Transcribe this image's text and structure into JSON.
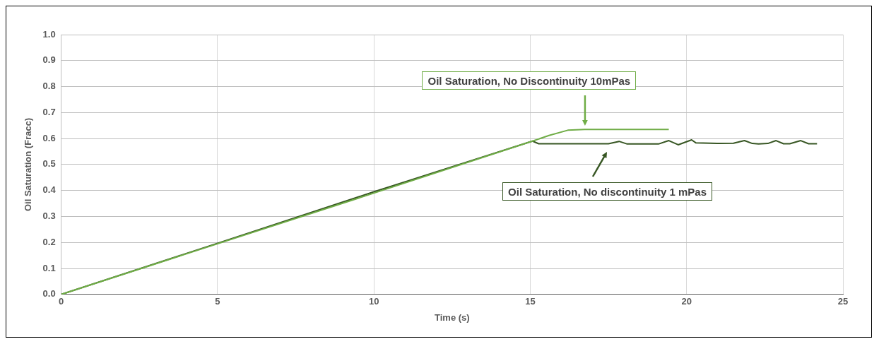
{
  "chart_data": {
    "type": "line",
    "xlabel": "Time (s)",
    "ylabel": "Oil Saturation (Fracc)",
    "xlim": [
      0,
      25
    ],
    "xticks": [
      0,
      5,
      10,
      15,
      20,
      25
    ],
    "ylim": [
      0,
      1
    ],
    "yticks": [
      {
        "value": 0,
        "label": "0.0"
      },
      {
        "value": 0.1,
        "label": "0.1"
      },
      {
        "value": 0.2,
        "label": "0.2"
      },
      {
        "value": 0.3,
        "label": "0.3"
      },
      {
        "value": 0.4,
        "label": "0.4"
      },
      {
        "value": 0.5,
        "label": "0.5"
      },
      {
        "value": 0.6,
        "label": "0.6"
      },
      {
        "value": 0.7,
        "label": "0.7"
      },
      {
        "value": 0.8,
        "label": "0.8"
      },
      {
        "value": 0.9,
        "label": "0.9"
      },
      {
        "value": 1,
        "label": "1.0"
      }
    ],
    "grid": true,
    "legend": "right",
    "marker": "none",
    "line_style": "solid",
    "series": [
      {
        "name": "Oil Saturation, No Discontinuity 10mPas",
        "color": "#70ad47",
        "x": [
          0,
          5,
          10,
          15.07,
          15.6,
          16.2,
          16.74,
          19.43
        ],
        "values": [
          0,
          0.195,
          0.39,
          0.59,
          0.612,
          0.632,
          0.635,
          0.635
        ]
      },
      {
        "name": "Oil Saturation, No discontinuity 1 mPas",
        "color": "#375623",
        "x": [
          0,
          5,
          10,
          15.07,
          15.27,
          17.5,
          17.84,
          18.1,
          19.1,
          19.43,
          19.73,
          20.16,
          20.3,
          20.98,
          21.5,
          21.85,
          22.1,
          22.3,
          22.6,
          22.86,
          23.1,
          23.3,
          23.65,
          23.9,
          24.17
        ],
        "values": [
          0,
          0.197,
          0.395,
          0.59,
          0.58,
          0.58,
          0.589,
          0.579,
          0.579,
          0.592,
          0.576,
          0.595,
          0.583,
          0.581,
          0.582,
          0.592,
          0.581,
          0.579,
          0.581,
          0.592,
          0.58,
          0.58,
          0.592,
          0.58,
          0.58
        ]
      }
    ]
  }
}
